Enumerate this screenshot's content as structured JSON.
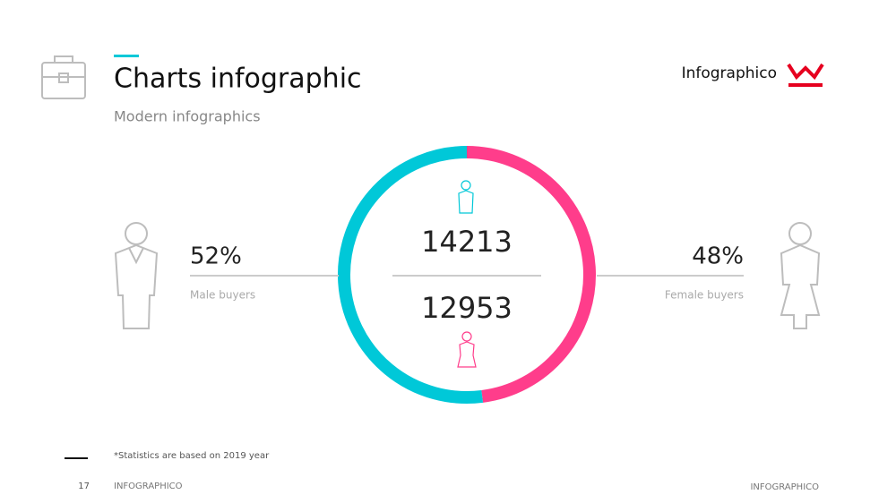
{
  "header": {
    "title": "Charts infographic",
    "subtitle": "Modern infographics",
    "brand": "Infographico"
  },
  "chart_data": {
    "type": "pie",
    "categories": [
      "Male buyers",
      "Female buyers"
    ],
    "values": [
      52,
      48
    ],
    "value_labels": [
      "52%",
      "48%"
    ],
    "colors": [
      "#00c8d8",
      "#ff3d8b"
    ],
    "counts": [
      14213,
      12953
    ]
  },
  "footer": {
    "note": "*Statistics are based on 2019 year",
    "page": 17,
    "left": "INFOGRAPHICO",
    "right": "INFOGRAPHICO"
  }
}
